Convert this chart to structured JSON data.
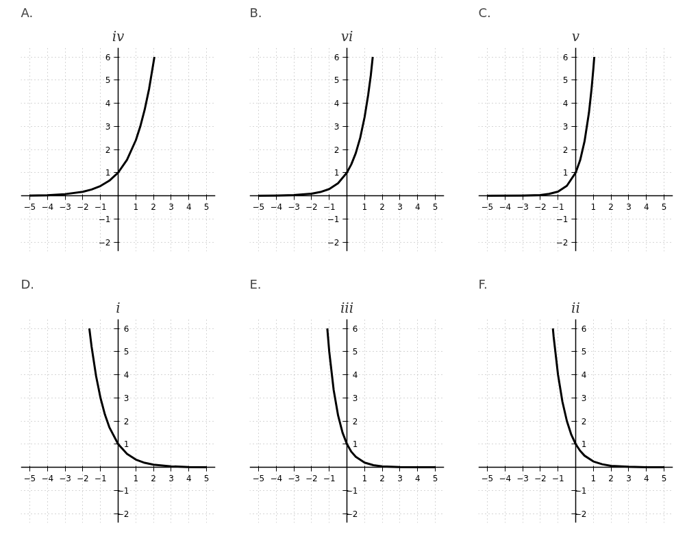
{
  "chart_data": [
    {
      "type": "line",
      "title": "A.",
      "subtitle": "iv",
      "xlim": [
        -5.5,
        5.5
      ],
      "ylim": [
        -2.4,
        6.4
      ],
      "xticks": [
        -5,
        -4,
        -3,
        -2,
        -1,
        1,
        2,
        3,
        4,
        5
      ],
      "yticks": [
        -2,
        -1,
        1,
        2,
        3,
        4,
        5,
        6
      ],
      "grid": true,
      "series": [
        {
          "color": "#000000",
          "x": [
            -5,
            -4,
            -3,
            -2,
            -1.5,
            -1,
            -0.5,
            0,
            0.5,
            1,
            1.25,
            1.5,
            1.75,
            2,
            2.05
          ],
          "values": [
            0.01,
            0.02,
            0.07,
            0.17,
            0.27,
            0.42,
            0.65,
            1,
            1.55,
            2.4,
            2.99,
            3.72,
            4.62,
            5.76,
            6.0
          ]
        }
      ]
    },
    {
      "type": "line",
      "title": "B.",
      "subtitle": "vi",
      "xlim": [
        -5.5,
        5.5
      ],
      "ylim": [
        -2.4,
        6.4
      ],
      "xticks": [
        -5,
        -4,
        -3,
        -2,
        -1,
        1,
        2,
        3,
        4,
        5
      ],
      "yticks": [
        -2,
        -1,
        1,
        2,
        3,
        4,
        5,
        6
      ],
      "grid": true,
      "series": [
        {
          "color": "#000000",
          "x": [
            -5,
            -4,
            -3,
            -2,
            -1.5,
            -1,
            -0.5,
            0,
            0.25,
            0.5,
            0.75,
            1,
            1.2,
            1.35,
            1.46
          ],
          "values": [
            0.0,
            0.01,
            0.03,
            0.09,
            0.16,
            0.29,
            0.54,
            1,
            1.36,
            1.84,
            2.5,
            3.4,
            4.35,
            5.2,
            6.0
          ]
        }
      ]
    },
    {
      "type": "line",
      "title": "C.",
      "subtitle": "v",
      "xlim": [
        -5.5,
        5.5
      ],
      "ylim": [
        -2.4,
        6.4
      ],
      "xticks": [
        -5,
        -4,
        -3,
        -2,
        -1,
        1,
        2,
        3,
        4,
        5
      ],
      "yticks": [
        -2,
        -1,
        1,
        2,
        3,
        4,
        5,
        6
      ],
      "grid": true,
      "series": [
        {
          "color": "#000000",
          "x": [
            -5,
            -3,
            -2,
            -1.5,
            -1,
            -0.5,
            0,
            0.25,
            0.5,
            0.75,
            0.9,
            1,
            1.05
          ],
          "values": [
            0.0,
            0.01,
            0.03,
            0.08,
            0.18,
            0.43,
            1,
            1.53,
            2.35,
            3.59,
            4.64,
            5.5,
            6.0
          ]
        }
      ]
    },
    {
      "type": "line",
      "title": "D.",
      "subtitle": "i",
      "xlim": [
        -5.5,
        5.5
      ],
      "ylim": [
        -2.4,
        6.4
      ],
      "xticks": [
        -5,
        -4,
        -3,
        -2,
        -1,
        1,
        2,
        3,
        4,
        5
      ],
      "yticks": [
        -2,
        -1,
        1,
        2,
        3,
        4,
        5,
        6
      ],
      "grid": true,
      "series": [
        {
          "color": "#000000",
          "x": [
            -1.63,
            -1.5,
            -1.25,
            -1,
            -0.75,
            -0.5,
            0,
            0.5,
            1,
            1.5,
            2,
            3,
            4,
            5
          ],
          "values": [
            6.0,
            5.2,
            3.95,
            3,
            2.28,
            1.73,
            1,
            0.58,
            0.33,
            0.19,
            0.11,
            0.04,
            0.01,
            0.0
          ]
        }
      ]
    },
    {
      "type": "line",
      "title": "E.",
      "subtitle": "iii",
      "xlim": [
        -5.5,
        5.5
      ],
      "ylim": [
        -2.4,
        6.4
      ],
      "xticks": [
        -5,
        -4,
        -3,
        -2,
        -1,
        1,
        2,
        3,
        4,
        5
      ],
      "yticks": [
        -2,
        -1,
        1,
        2,
        3,
        4,
        5,
        6
      ],
      "grid": true,
      "series": [
        {
          "color": "#000000",
          "x": [
            -1.11,
            -1,
            -0.75,
            -0.5,
            -0.25,
            0,
            0.25,
            0.5,
            1,
            1.5,
            2,
            3,
            4,
            5
          ],
          "values": [
            6.0,
            5,
            3.34,
            2.24,
            1.5,
            1,
            0.67,
            0.45,
            0.2,
            0.09,
            0.04,
            0.01,
            0.0,
            0.0
          ]
        }
      ]
    },
    {
      "type": "line",
      "title": "F.",
      "subtitle": "ii",
      "xlim": [
        -5.5,
        5.5
      ],
      "ylim": [
        -2.4,
        6.4
      ],
      "xticks": [
        -5,
        -4,
        -3,
        -2,
        -1,
        1,
        2,
        3,
        4,
        5
      ],
      "yticks": [
        -2,
        -1,
        1,
        2,
        3,
        4,
        5,
        6
      ],
      "grid": true,
      "series": [
        {
          "color": "#000000",
          "x": [
            -1.29,
            -1.25,
            -1,
            -0.75,
            -0.5,
            -0.25,
            0,
            0.25,
            0.5,
            1,
            1.5,
            2,
            3,
            4,
            5
          ],
          "values": [
            6.0,
            5.66,
            4,
            2.83,
            2,
            1.41,
            1,
            0.71,
            0.5,
            0.25,
            0.13,
            0.06,
            0.02,
            0.0,
            0.0
          ]
        }
      ]
    }
  ]
}
